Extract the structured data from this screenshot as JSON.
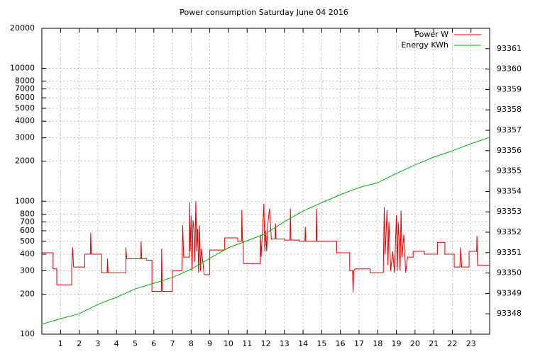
{
  "chart_data": {
    "type": "line",
    "title": "Power consumption Saturday June 04 2016",
    "xlim": [
      0,
      24
    ],
    "xticks": [
      1,
      2,
      3,
      4,
      5,
      6,
      7,
      8,
      9,
      10,
      11,
      12,
      13,
      14,
      15,
      16,
      17,
      18,
      19,
      20,
      21,
      22,
      23
    ],
    "ylim": [
      100,
      20000
    ],
    "ylog": true,
    "yticks": [
      100,
      200,
      300,
      400,
      500,
      600,
      700,
      800,
      1000,
      2000,
      3000,
      4000,
      5000,
      6000,
      7000,
      8000,
      10000,
      20000
    ],
    "y2lim": [
      93347,
      93362
    ],
    "y2ticks": [
      93348,
      93349,
      93350,
      93351,
      93352,
      93353,
      93354,
      93355,
      93356,
      93357,
      93358,
      93359,
      93360,
      93361
    ],
    "grid": true,
    "legend": "top-right",
    "series": [
      {
        "name": "Power W",
        "color": "#e00000",
        "x": [
          0,
          0.6,
          0.6,
          0.8,
          0.8,
          1.6,
          1.6,
          1.65,
          1.7,
          2.3,
          2.3,
          2.6,
          2.62,
          2.65,
          3.2,
          3.2,
          3.5,
          3.52,
          3.55,
          4.5,
          4.5,
          4.55,
          5.3,
          5.32,
          5.35,
          5.6,
          5.6,
          5.9,
          5.9,
          6.4,
          6.42,
          6.45,
          7.0,
          7.0,
          7.5,
          7.55,
          7.6,
          7.9,
          7.92,
          7.95,
          8.0,
          8.05,
          8.1,
          8.15,
          8.2,
          8.25,
          8.3,
          8.35,
          8.4,
          8.45,
          8.5,
          8.55,
          8.6,
          8.7,
          9.0,
          9.0,
          9.8,
          9.8,
          10.5,
          10.5,
          10.7,
          10.72,
          10.75,
          10.8,
          10.8,
          11.7,
          11.72,
          11.75,
          11.9,
          11.95,
          12.0,
          12.05,
          12.1,
          12.2,
          12.3,
          12.5,
          12.52,
          12.55,
          13.0,
          13.0,
          13.3,
          13.32,
          13.35,
          13.8,
          13.8,
          14.1,
          14.12,
          14.15,
          14.7,
          14.72,
          14.75,
          15.8,
          15.8,
          16.5,
          16.5,
          16.65,
          16.68,
          16.72,
          16.8,
          17.6,
          17.6,
          18.3,
          18.35,
          18.4,
          18.5,
          18.55,
          18.6,
          18.7,
          18.8,
          18.9,
          19.0,
          19.05,
          19.1,
          19.15,
          19.2,
          19.25,
          19.3,
          19.4,
          19.5,
          19.6,
          19.9,
          19.9,
          20.5,
          20.5,
          21.2,
          21.2,
          21.6,
          21.6,
          22.1,
          22.1,
          22.4,
          22.45,
          22.5,
          22.9,
          22.9,
          23.3,
          23.32,
          23.35,
          24
        ],
        "values": [
          410,
          410,
          310,
          310,
          235,
          235,
          320,
          450,
          320,
          320,
          400,
          400,
          580,
          400,
          400,
          290,
          290,
          370,
          290,
          290,
          450,
          370,
          370,
          500,
          370,
          370,
          360,
          360,
          210,
          210,
          440,
          210,
          210,
          300,
          300,
          660,
          380,
          380,
          980,
          420,
          780,
          300,
          720,
          620,
          350,
          1000,
          420,
          620,
          290,
          660,
          300,
          440,
          380,
          280,
          280,
          430,
          430,
          530,
          530,
          500,
          500,
          860,
          500,
          500,
          340,
          340,
          560,
          380,
          960,
          420,
          600,
          420,
          650,
          880,
          520,
          520,
          680,
          520,
          520,
          510,
          510,
          880,
          510,
          510,
          500,
          500,
          640,
          500,
          500,
          880,
          500,
          500,
          410,
          410,
          300,
          300,
          205,
          300,
          310,
          310,
          290,
          290,
          900,
          400,
          860,
          330,
          700,
          300,
          420,
          290,
          780,
          300,
          700,
          500,
          300,
          850,
          380,
          560,
          290,
          380,
          380,
          420,
          420,
          400,
          400,
          490,
          490,
          400,
          400,
          320,
          320,
          450,
          320,
          320,
          420,
          420,
          550,
          330,
          330
        ]
      },
      {
        "name": "Energy KWh",
        "color": "#00b000",
        "axis": "y2",
        "x": [
          0,
          1,
          2,
          3,
          4,
          5,
          6,
          7,
          8,
          9,
          10,
          11,
          12,
          13,
          14,
          15,
          16,
          17,
          18,
          19,
          20,
          21,
          22,
          23,
          24
        ],
        "values": [
          93347.49,
          93347.76,
          93348.0,
          93348.46,
          93348.81,
          93349.22,
          93349.5,
          93349.78,
          93350.19,
          93350.72,
          93351.24,
          93351.58,
          93351.93,
          93352.52,
          93353.04,
          93353.45,
          93353.84,
          93354.19,
          93354.43,
          93354.88,
          93355.3,
          93355.68,
          93355.99,
          93356.34,
          93356.65
        ]
      }
    ]
  }
}
